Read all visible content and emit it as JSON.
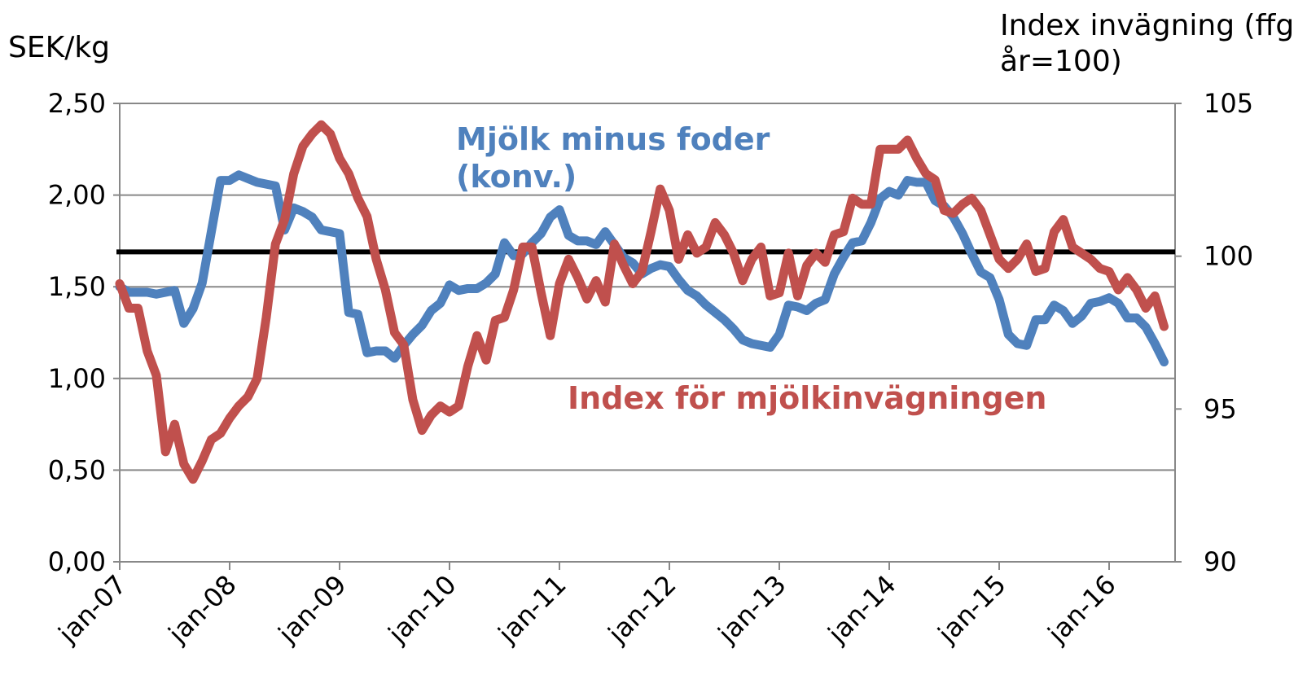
{
  "chart_data": {
    "type": "line",
    "y_label": "SEK/kg",
    "y2_label": "Index invägning (ffg år=100)",
    "categories": [
      "jan-07",
      null,
      null,
      null,
      null,
      null,
      null,
      null,
      null,
      null,
      null,
      null,
      "jan-08",
      null,
      null,
      null,
      null,
      null,
      null,
      null,
      null,
      null,
      null,
      null,
      "jan-09",
      null,
      null,
      null,
      null,
      null,
      null,
      null,
      null,
      null,
      null,
      null,
      "jan-10",
      null,
      null,
      null,
      null,
      null,
      null,
      null,
      null,
      null,
      null,
      null,
      "jan-11",
      null,
      null,
      null,
      null,
      null,
      null,
      null,
      null,
      null,
      null,
      null,
      "jan-12",
      null,
      null,
      null,
      null,
      null,
      null,
      null,
      null,
      null,
      null,
      null,
      "jan-13",
      null,
      null,
      null,
      null,
      null,
      null,
      null,
      null,
      null,
      null,
      null,
      "jan-14",
      null,
      null,
      null,
      null,
      null,
      null,
      null,
      null,
      null,
      null,
      null,
      "jan-15",
      null,
      null,
      null,
      null,
      null,
      null,
      null,
      null,
      null,
      null,
      null,
      "jan-16",
      null,
      null,
      null,
      null,
      null,
      null
    ],
    "ylim": [
      0,
      2.5
    ],
    "yticks": [
      {
        "value": 0,
        "label": "0,00"
      },
      {
        "value": 0.5,
        "label": "0,50"
      },
      {
        "value": 1,
        "label": "1,00"
      },
      {
        "value": 1.5,
        "label": "1,50"
      },
      {
        "value": 2,
        "label": "2,00"
      },
      {
        "value": 2.5,
        "label": "2,50"
      }
    ],
    "y2lim": [
      90,
      105
    ],
    "y2ticks": [
      90,
      95,
      100,
      105
    ],
    "grid": true,
    "reference_line": {
      "value": 1.69,
      "color": "#000000"
    },
    "series": [
      {
        "name": "Mjölk minus foder (konv.)",
        "color": "#4f81bd",
        "values": [
          1.5,
          1.47,
          1.47,
          1.47,
          1.46,
          1.47,
          1.48,
          1.3,
          1.38,
          1.52,
          1.8,
          2.08,
          2.08,
          2.11,
          2.09,
          2.07,
          2.06,
          2.05,
          1.81,
          1.93,
          1.91,
          1.88,
          1.81,
          1.8,
          1.79,
          1.36,
          1.35,
          1.14,
          1.15,
          1.15,
          1.11,
          1.18,
          1.24,
          1.29,
          1.37,
          1.41,
          1.51,
          1.48,
          1.49,
          1.49,
          1.52,
          1.57,
          1.74,
          1.67,
          1.68,
          1.74,
          1.79,
          1.88,
          1.92,
          1.78,
          1.75,
          1.75,
          1.73,
          1.8,
          1.73,
          1.66,
          1.63,
          1.57,
          1.6,
          1.62,
          1.61,
          1.54,
          1.48,
          1.45,
          1.4,
          1.36,
          1.32,
          1.27,
          1.21,
          1.19,
          1.18,
          1.17,
          1.24,
          1.4,
          1.39,
          1.37,
          1.41,
          1.43,
          1.57,
          1.66,
          1.74,
          1.75,
          1.85,
          1.98,
          2.02,
          2.0,
          2.08,
          2.07,
          2.07,
          1.97,
          1.94,
          1.88,
          1.79,
          1.68,
          1.58,
          1.55,
          1.43,
          1.24,
          1.19,
          1.18,
          1.32,
          1.32,
          1.4,
          1.37,
          1.3,
          1.34,
          1.41,
          1.42,
          1.44,
          1.41,
          1.33,
          1.33,
          1.28,
          1.19,
          1.09
        ]
      },
      {
        "name": "Index för mjölkinvägningen",
        "color": "#c0504d",
        "axis": "y2",
        "values": [
          99.1,
          98.3,
          98.3,
          96.9,
          96.1,
          93.6,
          94.5,
          93.2,
          92.7,
          93.3,
          94.0,
          94.2,
          94.7,
          95.1,
          95.4,
          96.0,
          98.0,
          100.4,
          101.2,
          102.7,
          103.6,
          104.0,
          104.3,
          104.0,
          103.2,
          102.7,
          101.9,
          101.3,
          99.9,
          98.9,
          97.5,
          97.1,
          95.3,
          94.3,
          94.8,
          95.1,
          94.9,
          95.1,
          96.4,
          97.4,
          96.6,
          97.9,
          98.0,
          98.9,
          100.3,
          100.3,
          98.8,
          97.4,
          99.1,
          99.9,
          99.3,
          98.6,
          99.2,
          98.5,
          100.4,
          99.7,
          99.1,
          99.5,
          100.8,
          102.2,
          101.5,
          99.9,
          100.7,
          100.1,
          100.3,
          101.1,
          100.7,
          100.1,
          99.2,
          99.9,
          100.3,
          98.7,
          98.8,
          100.1,
          98.7,
          99.7,
          100.1,
          99.8,
          100.7,
          100.8,
          101.9,
          101.7,
          101.7,
          103.5,
          103.5,
          103.5,
          103.8,
          103.2,
          102.7,
          102.5,
          101.5,
          101.4,
          101.7,
          101.9,
          101.5,
          100.7,
          99.9,
          99.6,
          99.9,
          100.4,
          99.5,
          99.6,
          100.8,
          101.2,
          100.3,
          100.1,
          99.9,
          99.6,
          99.5,
          98.9,
          99.3,
          98.9,
          98.3,
          98.7,
          97.7
        ]
      }
    ]
  }
}
